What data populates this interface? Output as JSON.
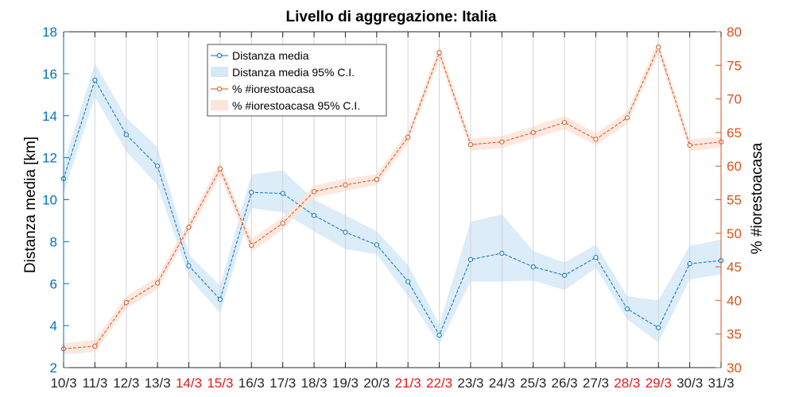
{
  "chart_data": {
    "type": "line",
    "title": "Livello di aggregazione: Italia",
    "categories": [
      "10/3",
      "11/3",
      "12/3",
      "13/3",
      "14/3",
      "15/3",
      "16/3",
      "17/3",
      "18/3",
      "19/3",
      "20/3",
      "21/3",
      "22/3",
      "23/3",
      "24/3",
      "25/3",
      "26/3",
      "27/3",
      "28/3",
      "29/3",
      "30/3",
      "31/3"
    ],
    "highlighted_categories": [
      "14/3",
      "15/3",
      "21/3",
      "22/3",
      "28/3",
      "29/3"
    ],
    "highlight_color": "#e01b1b",
    "y_left": {
      "label": "Distanza media [km]",
      "range": [
        2,
        18
      ],
      "ticks": [
        2,
        4,
        6,
        8,
        10,
        12,
        14,
        16,
        18
      ],
      "color": "#0072bd"
    },
    "y_right": {
      "label": "% #iorestoacasa",
      "range": [
        30,
        80
      ],
      "ticks": [
        30,
        35,
        40,
        45,
        50,
        55,
        60,
        65,
        70,
        75,
        80
      ],
      "color": "#d95319"
    },
    "grid": "vertical",
    "legend_position": "top-center",
    "series": [
      {
        "name": "Distanza media",
        "axis": "left",
        "color": "#0072bd",
        "values": [
          11.0,
          15.7,
          13.1,
          11.6,
          6.85,
          5.25,
          10.35,
          10.3,
          9.25,
          8.45,
          7.85,
          6.1,
          3.55,
          7.15,
          7.45,
          6.8,
          6.4,
          7.25,
          4.8,
          3.9,
          6.95,
          7.1
        ]
      },
      {
        "name": "Distanza media 95% C.I.",
        "axis": "left",
        "type": "band",
        "color": "#d6e9f7",
        "lower": [
          10.3,
          14.9,
          12.3,
          10.7,
          6.3,
          4.6,
          9.6,
          9.4,
          8.5,
          7.65,
          7.4,
          5.4,
          3.1,
          6.1,
          6.1,
          6.15,
          5.7,
          6.75,
          4.3,
          3.2,
          6.2,
          6.45
        ],
        "upper": [
          11.7,
          16.5,
          13.9,
          12.5,
          7.4,
          5.9,
          11.2,
          11.4,
          10.0,
          9.25,
          8.5,
          6.9,
          4.05,
          8.95,
          9.3,
          7.55,
          7.0,
          7.85,
          5.4,
          5.2,
          7.8,
          8.1
        ]
      },
      {
        "name": "% #iorestoacasa",
        "axis": "right",
        "color": "#d95319",
        "values": [
          32.8,
          33.2,
          39.7,
          42.6,
          50.9,
          59.6,
          48.2,
          51.5,
          56.2,
          57.2,
          58.0,
          64.3,
          76.9,
          63.2,
          63.6,
          65.0,
          66.5,
          64.0,
          67.2,
          77.7,
          63.1,
          63.6
        ]
      },
      {
        "name": "% #iorestoacasa 95% C.I.",
        "axis": "right",
        "type": "band",
        "color": "#fbe4d9",
        "lower": [
          32.0,
          32.3,
          38.8,
          41.7,
          50.0,
          58.6,
          47.2,
          50.6,
          55.3,
          56.3,
          57.2,
          63.4,
          75.9,
          62.3,
          62.7,
          64.1,
          65.5,
          63.1,
          66.3,
          76.7,
          62.2,
          62.8
        ],
        "upper": [
          33.6,
          34.1,
          40.6,
          43.5,
          51.8,
          60.6,
          49.2,
          52.4,
          57.1,
          58.1,
          58.8,
          65.2,
          77.9,
          64.1,
          64.5,
          65.9,
          67.5,
          64.9,
          68.1,
          78.7,
          64.0,
          64.4
        ]
      }
    ]
  }
}
